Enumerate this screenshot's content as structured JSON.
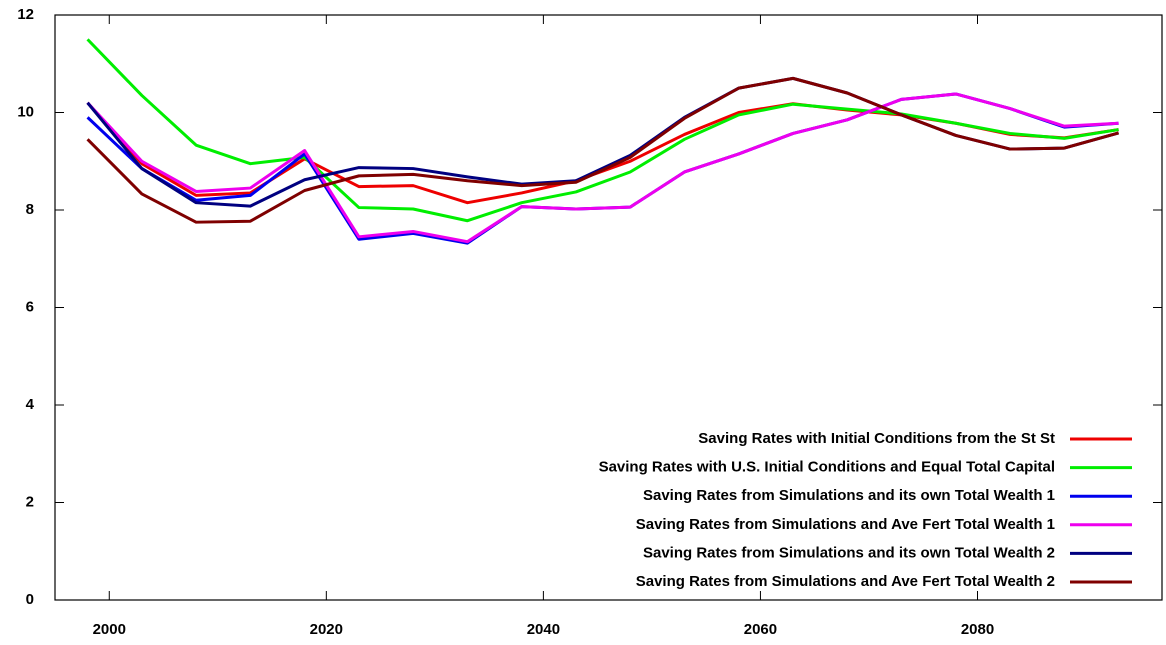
{
  "chart_data": {
    "type": "line",
    "x": [
      1998,
      2003,
      2008,
      2013,
      2018,
      2023,
      2028,
      2033,
      2038,
      2043,
      2048,
      2053,
      2058,
      2063,
      2068,
      2073,
      2078,
      2083,
      2088,
      2093
    ],
    "series": [
      {
        "name": "Saving Rates with Initial Conditions from the St St",
        "color": "#ee0000",
        "values": [
          10.2,
          8.95,
          8.3,
          8.35,
          9.05,
          8.48,
          8.5,
          8.15,
          8.35,
          8.6,
          9.0,
          9.55,
          10.0,
          10.18,
          10.05,
          9.95,
          9.78,
          9.55,
          9.48,
          9.65
        ]
      },
      {
        "name": "Saving Rates with U.S. Initial Conditions and Equal Total Capital",
        "color": "#00ee00",
        "values": [
          11.5,
          10.35,
          9.33,
          8.95,
          9.08,
          8.05,
          8.02,
          7.78,
          8.15,
          8.37,
          8.78,
          9.45,
          9.95,
          10.17,
          10.07,
          9.97,
          9.78,
          9.57,
          9.47,
          9.65
        ]
      },
      {
        "name": "Saving Rates from Simulations and its own Total Wealth 1",
        "color": "#0000ee",
        "values": [
          9.9,
          8.85,
          8.2,
          8.3,
          9.15,
          7.4,
          7.52,
          7.32,
          8.07,
          8.02,
          8.06,
          8.78,
          9.15,
          9.57,
          9.85,
          10.27,
          10.38,
          10.08,
          9.7,
          9.78
        ]
      },
      {
        "name": "Saving Rates from Simulations and Ave Fert Total Wealth 1",
        "color": "#ee00ee",
        "values": [
          10.2,
          9.0,
          8.38,
          8.45,
          9.22,
          7.45,
          7.56,
          7.35,
          8.07,
          8.02,
          8.06,
          8.78,
          9.15,
          9.57,
          9.85,
          10.27,
          10.38,
          10.08,
          9.72,
          9.78
        ]
      },
      {
        "name": "Saving Rates from Simulations and its own Total Wealth 2",
        "color": "#000080",
        "values": [
          10.2,
          8.85,
          8.15,
          8.08,
          8.62,
          8.87,
          8.85,
          8.68,
          8.53,
          8.6,
          9.12,
          9.9,
          10.5,
          10.7,
          10.4,
          9.95,
          9.53,
          9.25,
          9.27,
          9.58
        ]
      },
      {
        "name": "Saving Rates from Simulations and Ave Fert Total Wealth 2",
        "color": "#7f0000",
        "values": [
          9.45,
          8.33,
          7.75,
          7.77,
          8.4,
          8.7,
          8.73,
          8.6,
          8.5,
          8.57,
          9.08,
          9.88,
          10.5,
          10.7,
          10.4,
          9.95,
          9.53,
          9.25,
          9.27,
          9.58
        ]
      }
    ],
    "xlim": [
      1995,
      2097
    ],
    "xticks": [
      2000,
      2020,
      2040,
      2060,
      2080
    ],
    "ylim": [
      0,
      12
    ],
    "yticks": [
      0,
      2,
      4,
      6,
      8,
      10,
      12
    ],
    "legend": "bottom-right",
    "grid": false
  }
}
